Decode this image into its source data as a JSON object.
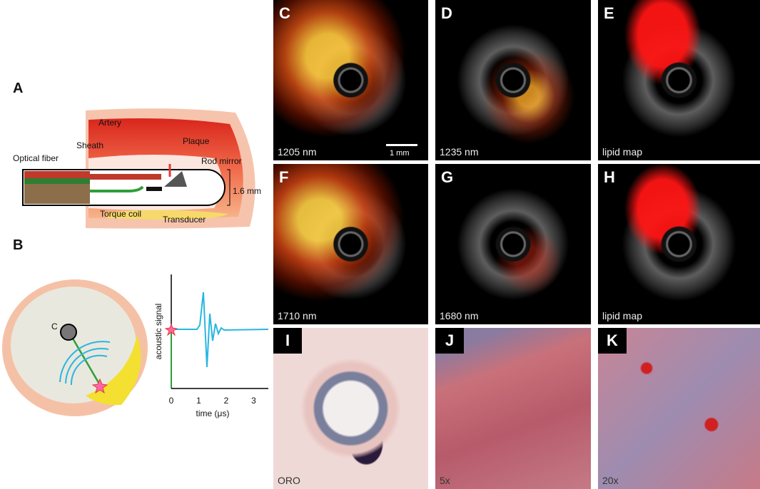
{
  "panel_a": {
    "letter": "A",
    "labels": {
      "artery": "Artery",
      "plaque": "Plaque",
      "sheath": "Sheath",
      "optical_fiber": "Optical fiber",
      "rod_mirror": "Rod mirror",
      "diameter": "1.6 mm",
      "torque_coil": "Torque coil",
      "transducer": "Transducer"
    }
  },
  "panel_b": {
    "letter": "B",
    "catheter_label": "C",
    "ylabel": "acoustic signal",
    "xlabel": "time (μs)",
    "xticks": [
      0,
      1,
      2,
      3
    ]
  },
  "images": [
    {
      "letter": "C",
      "caption": "1205 nm",
      "scale_bar": "1 mm"
    },
    {
      "letter": "D",
      "caption": "1235 nm"
    },
    {
      "letter": "E",
      "caption": "lipid map"
    },
    {
      "letter": "F",
      "caption": "1710 nm"
    },
    {
      "letter": "G",
      "caption": "1680 nm"
    },
    {
      "letter": "H",
      "caption": "lipid map"
    },
    {
      "letter": "I",
      "caption": "ORO"
    },
    {
      "letter": "J",
      "caption": "5x"
    },
    {
      "letter": "K",
      "caption": "20x"
    }
  ]
}
